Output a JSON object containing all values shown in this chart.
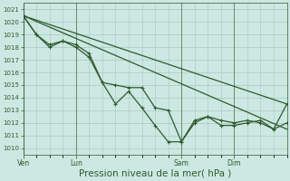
{
  "bg_color": "#cde8e2",
  "grid_color": "#a8c8c0",
  "line_color": "#2d5a2d",
  "xlabel": "Pression niveau de la mer( hPa )",
  "xlabel_fontsize": 7.5,
  "ylim": [
    1009.5,
    1021.5
  ],
  "yticks": [
    1010,
    1011,
    1012,
    1013,
    1014,
    1015,
    1016,
    1017,
    1018,
    1019,
    1020,
    1021
  ],
  "xtick_labels": [
    "Ven",
    "Lun",
    "Sam",
    "Dim"
  ],
  "xtick_positions": [
    0,
    24,
    72,
    96
  ],
  "vline_positions": [
    0,
    24,
    72,
    96
  ],
  "total_hours": 120,
  "series": [
    {
      "x": [
        0,
        120
      ],
      "y": [
        1020.5,
        1013.5
      ],
      "marker": false,
      "lw": 0.9
    },
    {
      "x": [
        0,
        120
      ],
      "y": [
        1020.5,
        1011.5
      ],
      "marker": false,
      "lw": 0.9
    },
    {
      "x": [
        0,
        6,
        12,
        18,
        24,
        30,
        36,
        42,
        48,
        54,
        60,
        66,
        72,
        78,
        84,
        90,
        96,
        102,
        108,
        114,
        120
      ],
      "y": [
        1020.5,
        1019.0,
        1018.0,
        1018.5,
        1018.2,
        1017.5,
        1015.2,
        1015.0,
        1014.8,
        1014.8,
        1013.2,
        1013.0,
        1010.5,
        1012.2,
        1012.5,
        1012.2,
        1012.0,
        1012.2,
        1012.0,
        1011.5,
        1013.5
      ],
      "marker": true,
      "lw": 0.9
    },
    {
      "x": [
        0,
        6,
        12,
        18,
        24,
        30,
        36,
        42,
        48,
        54,
        60,
        66,
        72,
        78,
        84,
        90,
        96,
        102,
        108,
        114,
        120
      ],
      "y": [
        1020.5,
        1019.0,
        1018.2,
        1018.5,
        1018.0,
        1017.2,
        1015.2,
        1013.5,
        1014.5,
        1013.2,
        1011.8,
        1010.5,
        1010.5,
        1012.0,
        1012.5,
        1011.8,
        1011.8,
        1012.0,
        1012.2,
        1011.5,
        1012.0
      ],
      "marker": true,
      "lw": 0.9
    }
  ]
}
